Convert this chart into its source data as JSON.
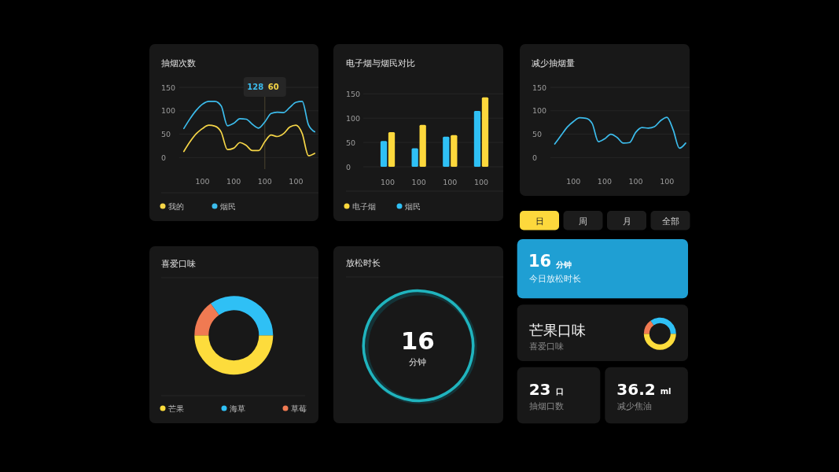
{
  "chart_data": [
    {
      "type": "line",
      "title": "抽烟次数",
      "categories": [
        null,
        null,
        null,
        "100",
        null,
        null,
        null,
        null,
        "100",
        null,
        null,
        null,
        null,
        "100",
        null,
        null,
        null,
        null,
        "100",
        null,
        null,
        null
      ],
      "series": [
        {
          "name": "烟民",
          "color": "#3cbcec",
          "values": [
            62,
            83,
            101,
            114,
            120,
            120,
            110,
            68,
            73,
            83,
            82,
            71,
            63,
            76,
            94,
            97,
            96,
            107,
            118,
            120,
            70,
            55
          ]
        },
        {
          "name": "我的",
          "color": "#f5d547",
          "values": [
            13,
            34,
            51,
            62,
            69,
            67,
            54,
            17,
            20,
            32,
            26,
            15,
            15,
            34,
            48,
            45,
            51,
            65,
            69,
            51,
            4,
            9
          ]
        }
      ],
      "ylim": [
        0,
        150
      ],
      "yticks": [
        0,
        50,
        100,
        150
      ],
      "grid": "y",
      "legend": "bottom",
      "annotations": [
        "128",
        "60"
      ]
    },
    {
      "type": "bar",
      "title": "电子烟与烟民对比",
      "categories": [
        "100",
        "100",
        "100",
        "100"
      ],
      "series": [
        {
          "name": "烟民",
          "color": "#2fc0f5",
          "values": [
            53,
            38,
            62,
            115
          ]
        },
        {
          "name": "电子烟",
          "color": "#fdd83c",
          "values": [
            71,
            86,
            65,
            143
          ]
        }
      ],
      "ylim": [
        0,
        150
      ],
      "yticks": [
        0,
        50,
        100,
        150
      ],
      "grid": "y",
      "legend": "bottom"
    },
    {
      "type": "line",
      "title": "减少抽烟量",
      "categories": [
        null,
        null,
        null,
        "100",
        null,
        null,
        null,
        null,
        "100",
        null,
        null,
        null,
        null,
        "100",
        null,
        null,
        null,
        null,
        "100",
        null,
        null,
        null
      ],
      "color": "#3cbcec",
      "values": [
        29,
        47,
        65,
        77,
        85,
        84,
        73,
        34,
        40,
        50,
        43,
        31,
        32,
        54,
        64,
        63,
        66,
        79,
        86,
        59,
        20,
        31
      ],
      "ylim": [
        0,
        150
      ],
      "yticks": [
        0,
        50,
        100,
        150
      ],
      "grid": "y"
    },
    {
      "type": "other",
      "annotations": [
        "日",
        "周",
        "月",
        "全部",
        "16",
        "分钟",
        "今日放松时长"
      ]
    },
    {
      "type": "donut",
      "title": "喜爱口味",
      "categories": [
        "芒果",
        "海草",
        "草莓"
      ],
      "values": [
        50,
        35,
        15
      ],
      "colors": [
        "#fddc3c",
        "#2fc0f5",
        "#f07a52"
      ],
      "legend": "bottom"
    },
    {
      "type": "other",
      "title": "放松时长",
      "annotations": [
        "16",
        "分钟"
      ]
    },
    {
      "type": "donut",
      "title": "芒果口味",
      "subtitle": "喜爱口味",
      "categories": [
        null,
        null,
        null
      ],
      "values": [
        50,
        35,
        15
      ],
      "colors": [
        "#fddc3c",
        "#2fc0f5",
        "#f07a52"
      ]
    },
    {
      "type": "other",
      "annotations": [
        "23",
        "口",
        "抽烟口数",
        "36.2",
        "ml",
        "减少焦油"
      ]
    }
  ]
}
